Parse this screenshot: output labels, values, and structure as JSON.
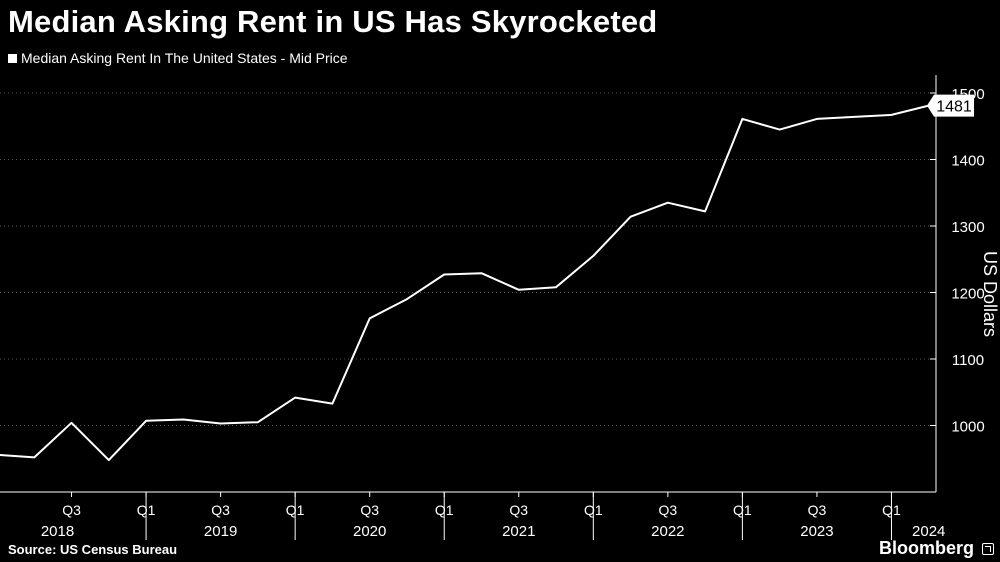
{
  "chart_data": {
    "type": "line",
    "title": "Median Asking Rent in US Has Skyrocketed",
    "legend": "Median Asking Rent In The United States - Mid Price",
    "ylabel": "US Dollars",
    "xlabel": "",
    "ylim": [
      900,
      1500
    ],
    "yticks": [
      1000,
      1100,
      1200,
      1300,
      1400,
      1500
    ],
    "x_range": [
      2018.0,
      2024.5
    ],
    "quarter_ticks": [
      {
        "x": 2018.5,
        "label": "Q3"
      },
      {
        "x": 2019.0,
        "label": "Q1"
      },
      {
        "x": 2019.5,
        "label": "Q3"
      },
      {
        "x": 2020.0,
        "label": "Q1"
      },
      {
        "x": 2020.5,
        "label": "Q3"
      },
      {
        "x": 2021.0,
        "label": "Q1"
      },
      {
        "x": 2021.5,
        "label": "Q3"
      },
      {
        "x": 2022.0,
        "label": "Q1"
      },
      {
        "x": 2022.5,
        "label": "Q3"
      },
      {
        "x": 2023.0,
        "label": "Q1"
      },
      {
        "x": 2023.5,
        "label": "Q3"
      },
      {
        "x": 2024.0,
        "label": "Q1"
      }
    ],
    "year_labels": [
      "2018",
      "2019",
      "2020",
      "2021",
      "2022",
      "2023",
      "2024"
    ],
    "series": [
      {
        "name": "Median Asking Rent In The United States - Mid Price",
        "color": "#ffffff",
        "points": [
          {
            "x": 2018.0,
            "y": 956
          },
          {
            "x": 2018.25,
            "y": 952
          },
          {
            "x": 2018.5,
            "y": 1004
          },
          {
            "x": 2018.75,
            "y": 948
          },
          {
            "x": 2019.0,
            "y": 1007
          },
          {
            "x": 2019.25,
            "y": 1009
          },
          {
            "x": 2019.5,
            "y": 1003
          },
          {
            "x": 2019.75,
            "y": 1005
          },
          {
            "x": 2020.0,
            "y": 1042
          },
          {
            "x": 2020.25,
            "y": 1033
          },
          {
            "x": 2020.5,
            "y": 1161
          },
          {
            "x": 2020.75,
            "y": 1190
          },
          {
            "x": 2021.0,
            "y": 1227
          },
          {
            "x": 2021.25,
            "y": 1229
          },
          {
            "x": 2021.5,
            "y": 1204
          },
          {
            "x": 2021.75,
            "y": 1208
          },
          {
            "x": 2022.0,
            "y": 1255
          },
          {
            "x": 2022.25,
            "y": 1314
          },
          {
            "x": 2022.5,
            "y": 1335
          },
          {
            "x": 2022.75,
            "y": 1322
          },
          {
            "x": 2023.0,
            "y": 1461
          },
          {
            "x": 2023.25,
            "y": 1445
          },
          {
            "x": 2023.5,
            "y": 1461
          },
          {
            "x": 2023.75,
            "y": 1464
          },
          {
            "x": 2024.0,
            "y": 1467
          },
          {
            "x": 2024.25,
            "y": 1481
          }
        ]
      }
    ],
    "last_value_label": "1481",
    "grid": true,
    "grid_style": "dotted horizontal",
    "legend_position": "top-left"
  },
  "source": "Source: US Census Bureau",
  "brand": "Bloomberg",
  "colors": {
    "background": "#000000",
    "foreground": "#ffffff",
    "grid": "#555555"
  }
}
